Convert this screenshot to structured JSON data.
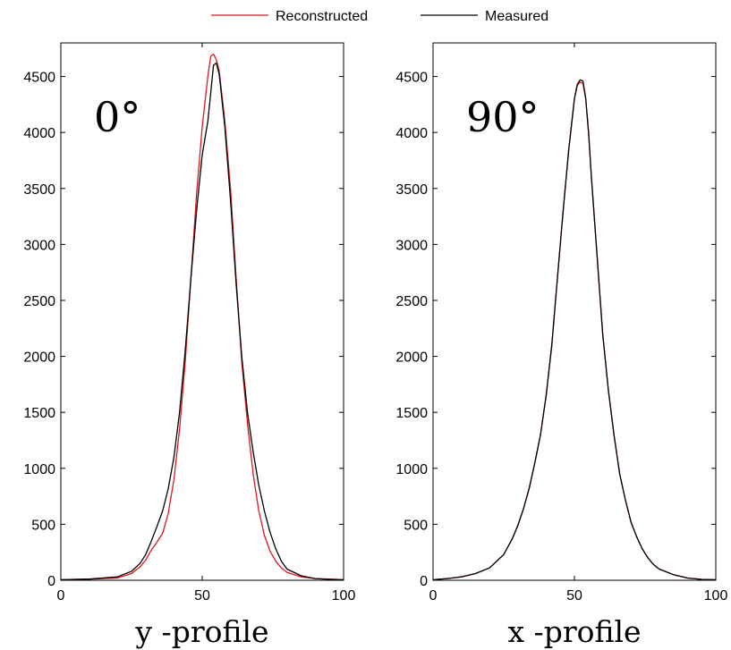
{
  "chart_data": [
    {
      "type": "line",
      "annotation": "0°",
      "xlabel": "y -profile",
      "ylabel": "",
      "xlim": [
        0,
        100
      ],
      "ylim": [
        0,
        4800
      ],
      "xticks": [
        0,
        50,
        100
      ],
      "yticks": [
        0,
        500,
        1000,
        1500,
        2000,
        2500,
        3000,
        3500,
        4000,
        4500
      ],
      "grid": false,
      "series": [
        {
          "name": "Reconstructed",
          "color": "#e0161b",
          "x": [
            0,
            10,
            20,
            25,
            28,
            30,
            32,
            34,
            36,
            38,
            40,
            42,
            44,
            46,
            48,
            50,
            52,
            53,
            54,
            55,
            56,
            58,
            60,
            62,
            64,
            66,
            68,
            70,
            72,
            74,
            76,
            78,
            80,
            85,
            90,
            95,
            100
          ],
          "y": [
            5,
            10,
            20,
            60,
            120,
            180,
            270,
            340,
            420,
            600,
            900,
            1350,
            1950,
            2700,
            3450,
            4050,
            4500,
            4680,
            4700,
            4650,
            4550,
            4100,
            3500,
            2700,
            1950,
            1400,
            950,
            620,
            400,
            260,
            170,
            110,
            70,
            30,
            15,
            10,
            5
          ]
        },
        {
          "name": "Measured",
          "color": "#000000",
          "x": [
            0,
            10,
            20,
            25,
            28,
            30,
            32,
            34,
            36,
            38,
            40,
            42,
            44,
            46,
            48,
            50,
            52,
            53,
            54,
            55,
            56,
            58,
            60,
            62,
            64,
            66,
            68,
            70,
            72,
            74,
            76,
            78,
            80,
            85,
            90,
            95,
            100
          ],
          "y": [
            5,
            10,
            30,
            80,
            150,
            230,
            350,
            480,
            620,
            820,
            1100,
            1500,
            2050,
            2700,
            3300,
            3800,
            4100,
            4350,
            4600,
            4620,
            4520,
            4050,
            3400,
            2650,
            2000,
            1500,
            1150,
            850,
            620,
            430,
            280,
            170,
            100,
            40,
            15,
            8,
            5
          ]
        }
      ]
    },
    {
      "type": "line",
      "annotation": "90°",
      "xlabel": "x -profile",
      "ylabel": "",
      "xlim": [
        0,
        100
      ],
      "ylim": [
        0,
        4800
      ],
      "xticks": [
        0,
        50,
        100
      ],
      "yticks": [
        0,
        500,
        1000,
        1500,
        2000,
        2500,
        3000,
        3500,
        4000,
        4500
      ],
      "grid": false,
      "series": [
        {
          "name": "Reconstructed",
          "color": "#e0161b",
          "x": [
            0,
            5,
            10,
            15,
            20,
            25,
            28,
            30,
            32,
            34,
            36,
            38,
            40,
            42,
            44,
            46,
            48,
            50,
            51,
            52,
            53,
            54,
            55,
            56,
            58,
            60,
            62,
            64,
            66,
            68,
            70,
            72,
            74,
            76,
            78,
            80,
            85,
            90,
            95,
            100
          ],
          "y": [
            5,
            15,
            30,
            60,
            110,
            230,
            370,
            490,
            640,
            820,
            1050,
            1300,
            1650,
            2100,
            2700,
            3300,
            3850,
            4300,
            4420,
            4450,
            4440,
            4300,
            4000,
            3600,
            2900,
            2200,
            1700,
            1300,
            950,
            720,
            520,
            390,
            280,
            200,
            140,
            100,
            50,
            20,
            8,
            5
          ]
        },
        {
          "name": "Measured",
          "color": "#000000",
          "x": [
            0,
            5,
            10,
            15,
            20,
            25,
            28,
            30,
            32,
            34,
            36,
            38,
            40,
            42,
            44,
            46,
            48,
            50,
            51,
            52,
            53,
            54,
            55,
            56,
            58,
            60,
            62,
            64,
            66,
            68,
            70,
            72,
            74,
            76,
            78,
            80,
            85,
            90,
            95,
            100
          ],
          "y": [
            5,
            15,
            30,
            60,
            110,
            230,
            370,
            490,
            640,
            820,
            1050,
            1300,
            1650,
            2100,
            2700,
            3300,
            3850,
            4300,
            4430,
            4470,
            4460,
            4310,
            4000,
            3600,
            2900,
            2200,
            1700,
            1300,
            950,
            720,
            520,
            390,
            280,
            200,
            140,
            100,
            50,
            20,
            8,
            5
          ]
        }
      ]
    }
  ],
  "legend": {
    "position": "top-center",
    "entries": [
      {
        "label": "Reconstructed",
        "color": "#e0161b"
      },
      {
        "label": "Measured",
        "color": "#000000"
      }
    ]
  }
}
